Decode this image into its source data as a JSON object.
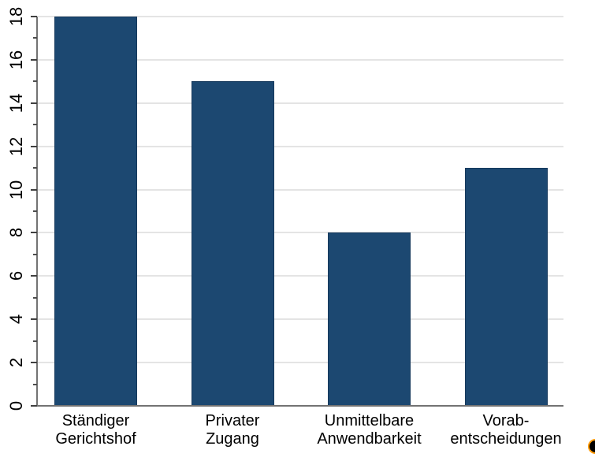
{
  "chart_data": {
    "type": "bar",
    "title": "",
    "xlabel": "",
    "ylabel": "",
    "categories": [
      [
        "Ständiger",
        "Gerichtshof"
      ],
      [
        "Privater",
        "Zugang"
      ],
      [
        "Unmittelbare",
        "Anwendbarkeit"
      ],
      [
        "Vorab-",
        "entscheidungen"
      ]
    ],
    "values": [
      18,
      15,
      8,
      11
    ],
    "ylim": [
      0,
      18
    ],
    "yticks": [
      0,
      2,
      4,
      6,
      8,
      10,
      12,
      14,
      16,
      18
    ],
    "minor_yticks": [
      1,
      3,
      5,
      7,
      9,
      11,
      13,
      15,
      17
    ],
    "grid": "horizontal-major-only",
    "legend_position": "none",
    "colors": {
      "bar_fill": "#1C4871",
      "bar_border": "#16395C",
      "gridline": "#E4E4E4",
      "axis_line": "#737373",
      "tick": "#404040",
      "text": "#000000"
    }
  },
  "decorations": {
    "corner_dot_fill": "#000000",
    "corner_dot_ring": "#FF9900"
  }
}
